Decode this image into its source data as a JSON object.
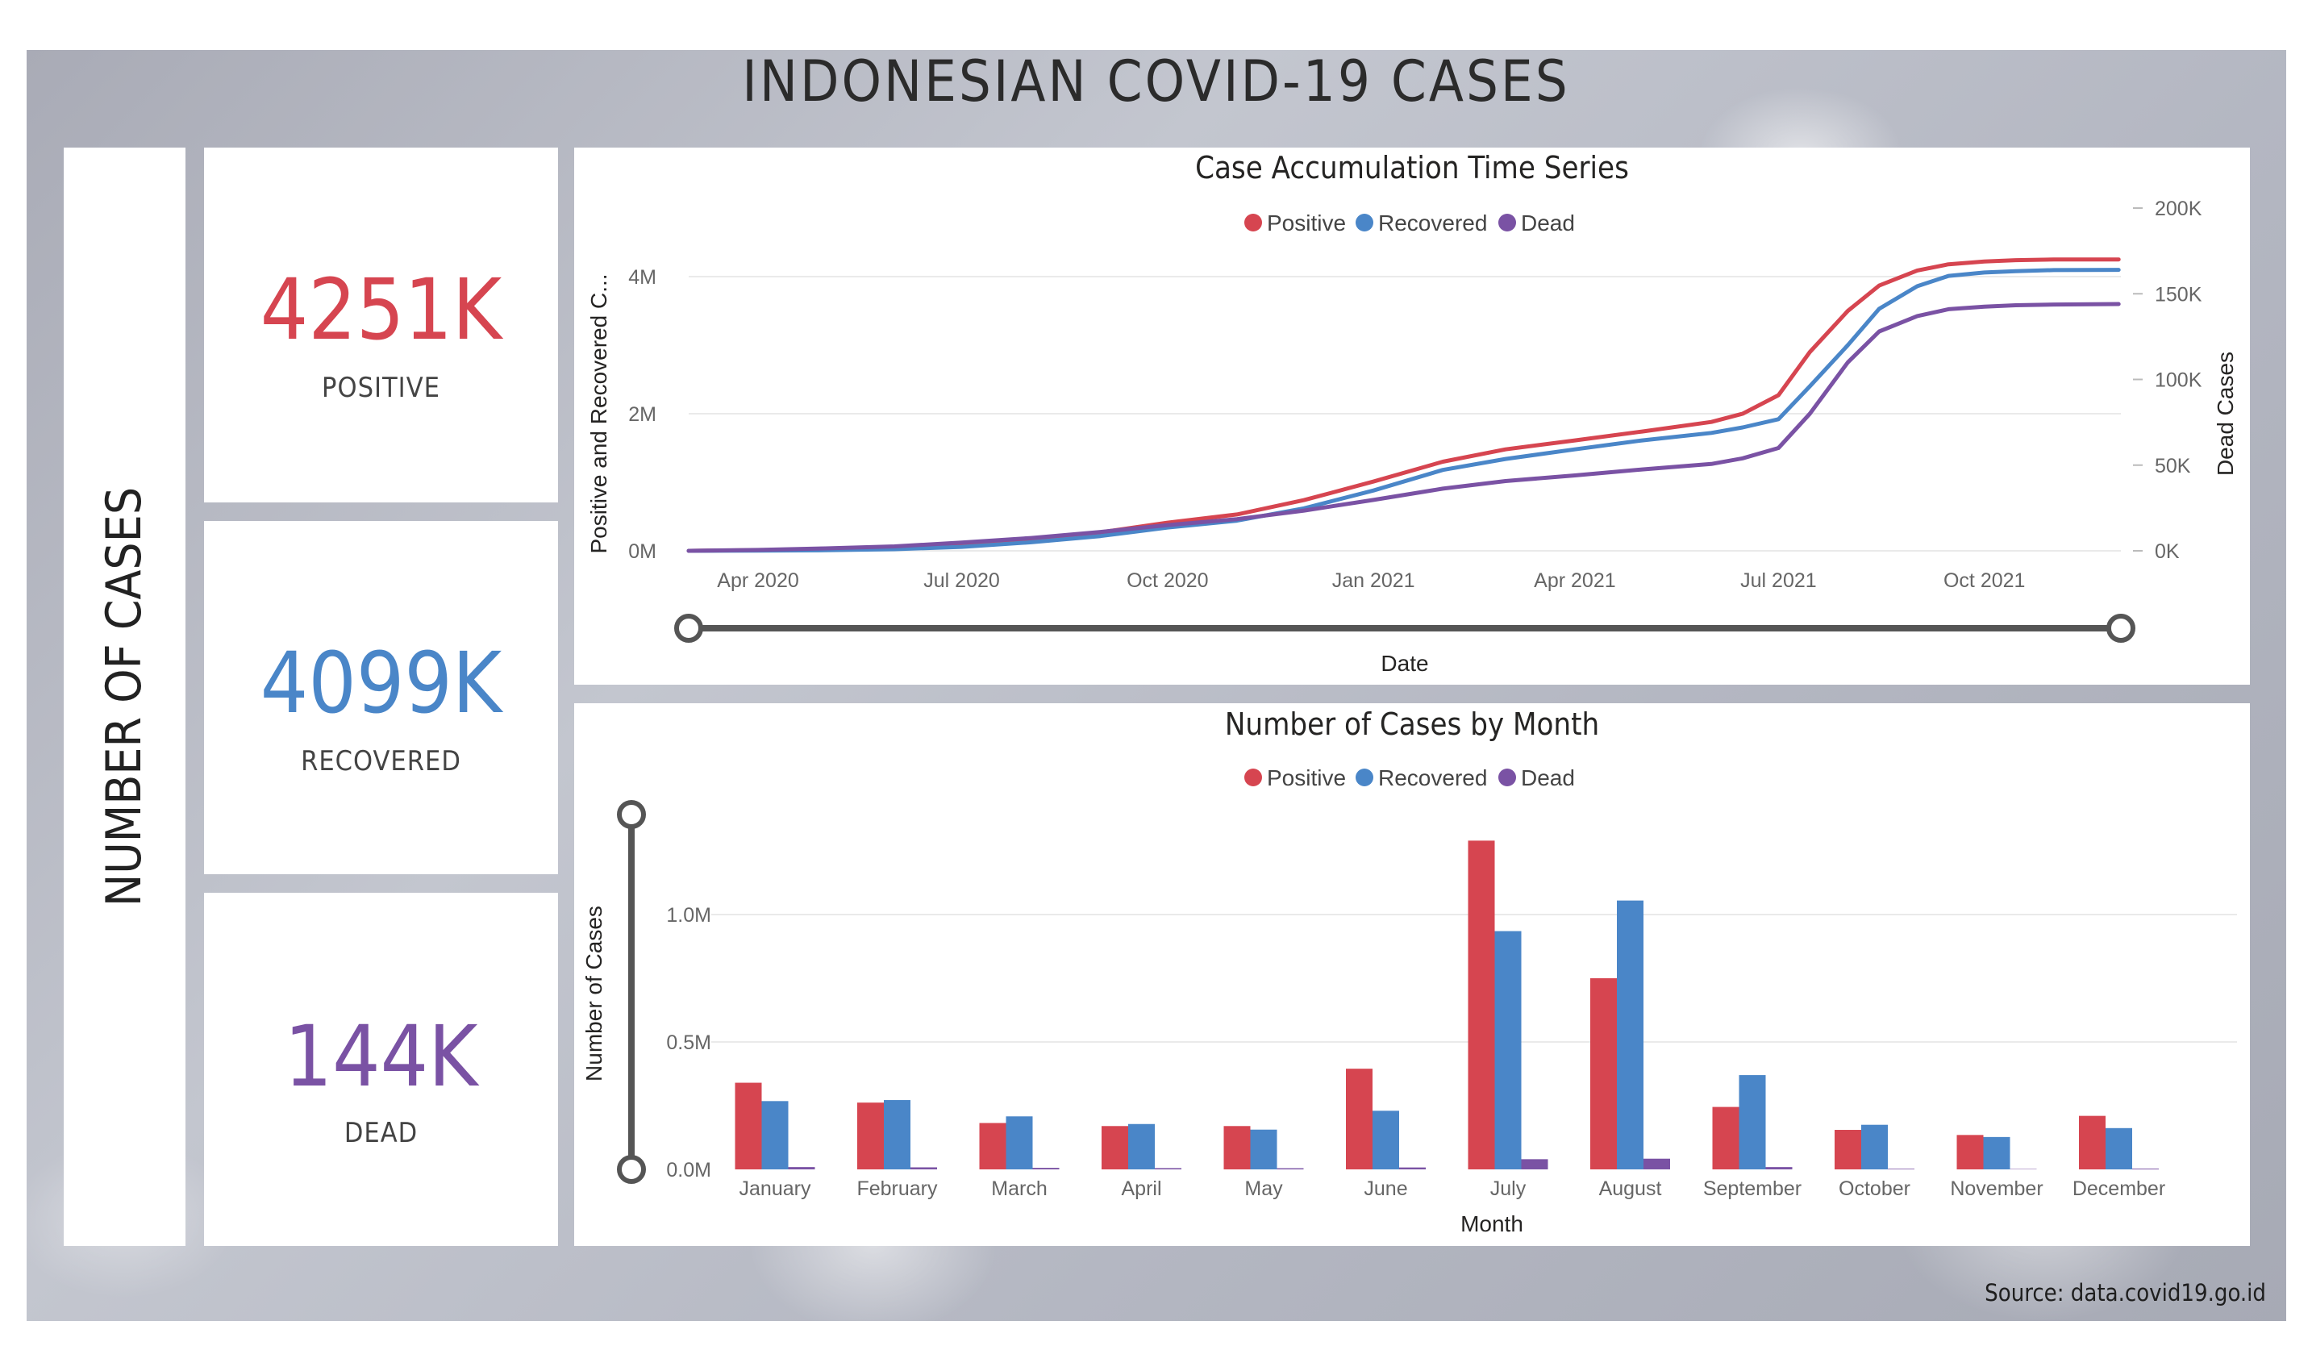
{
  "title": "INDONESIAN COVID-19 CASES",
  "side_label": "NUMBER OF CASES",
  "colors": {
    "positive": "#d64550",
    "recovered": "#4a86c8",
    "dead": "#7a52a4"
  },
  "kpis": [
    {
      "value": "4251K",
      "label": "POSITIVE",
      "color": "#d64550"
    },
    {
      "value": "4099K",
      "label": "RECOVERED",
      "color": "#4a86c8"
    },
    {
      "value": "144K",
      "label": "DEAD",
      "color": "#7a52a4"
    }
  ],
  "source": "Source: data.covid19.go.id",
  "chart_data": [
    {
      "type": "line",
      "title": "Case Accumulation Time Series",
      "legend": [
        "Positive",
        "Recovered",
        "Dead"
      ],
      "legend_position": "top-center",
      "xlabel": "Date",
      "ylabel": "Positive and Recovered C...",
      "y2label": "Dead Cases",
      "x_ticks": [
        "Apr 2020",
        "Jul 2020",
        "Oct 2020",
        "Jan 2021",
        "Apr 2021",
        "Jul 2021",
        "Oct 2021"
      ],
      "y_ticks": [
        "0M",
        "2M",
        "4M"
      ],
      "y2_ticks": [
        "0K",
        "50K",
        "100K",
        "150K",
        "200K"
      ],
      "ylim": [
        0,
        5000000
      ],
      "y2lim": [
        0,
        200000
      ],
      "x": [
        "2020-03-01",
        "2020-04-01",
        "2020-05-01",
        "2020-06-01",
        "2020-07-01",
        "2020-08-01",
        "2020-09-01",
        "2020-10-01",
        "2020-11-01",
        "2020-12-01",
        "2021-01-01",
        "2021-02-01",
        "2021-03-01",
        "2021-04-01",
        "2021-05-01",
        "2021-06-01",
        "2021-06-15",
        "2021-07-01",
        "2021-07-15",
        "2021-08-01",
        "2021-08-15",
        "2021-09-01",
        "2021-09-15",
        "2021-10-01",
        "2021-10-15",
        "2021-11-01",
        "2021-11-30"
      ],
      "series": [
        {
          "name": "Positive",
          "axis": "left",
          "values": [
            0,
            9000,
            26000,
            56000,
            108000,
            174000,
            270000,
            410000,
            530000,
            740000,
            1010000,
            1300000,
            1480000,
            1610000,
            1740000,
            1880000,
            2000000,
            2270000,
            2900000,
            3500000,
            3870000,
            4090000,
            4180000,
            4220000,
            4240000,
            4250000,
            4251000
          ]
        },
        {
          "name": "Recovered",
          "axis": "left",
          "values": [
            0,
            3000,
            8000,
            24000,
            58000,
            125000,
            215000,
            340000,
            440000,
            620000,
            880000,
            1180000,
            1340000,
            1480000,
            1610000,
            1720000,
            1800000,
            1920000,
            2400000,
            3000000,
            3530000,
            3860000,
            4010000,
            4060000,
            4080000,
            4095000,
            4099000
          ]
        },
        {
          "name": "Dead",
          "axis": "right",
          "values": [
            0,
            500,
            1400,
            2600,
            4800,
            7500,
            11000,
            15000,
            18500,
            23500,
            29700,
            36300,
            40700,
            44000,
            47500,
            50700,
            54000,
            60000,
            80000,
            110000,
            128000,
            137000,
            141000,
            142500,
            143300,
            143700,
            144000
          ]
        }
      ]
    },
    {
      "type": "bar",
      "title": "Number of Cases by Month",
      "legend": [
        "Positive",
        "Recovered",
        "Dead"
      ],
      "legend_position": "top-center",
      "xlabel": "Month",
      "ylabel": "Number of Cases",
      "categories": [
        "January",
        "February",
        "March",
        "April",
        "May",
        "June",
        "July",
        "August",
        "September",
        "October",
        "November",
        "December"
      ],
      "y_ticks": [
        "0.0M",
        "0.5M",
        "1.0M"
      ],
      "ylim": [
        0,
        1400000
      ],
      "series": [
        {
          "name": "Positive",
          "values": [
            340000,
            262000,
            182000,
            170000,
            170000,
            395000,
            1290000,
            750000,
            245000,
            155000,
            135000,
            210000
          ]
        },
        {
          "name": "Recovered",
          "values": [
            268000,
            272000,
            208000,
            178000,
            156000,
            230000,
            935000,
            1055000,
            370000,
            175000,
            127000,
            162000
          ]
        },
        {
          "name": "Dead",
          "values": [
            9000,
            8000,
            6000,
            5000,
            4500,
            7500,
            40000,
            42000,
            9000,
            2500,
            1500,
            3000
          ]
        }
      ]
    }
  ]
}
